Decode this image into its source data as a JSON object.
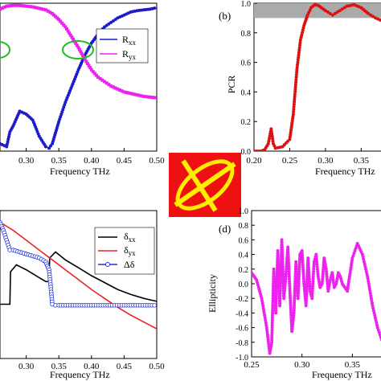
{
  "chart_data": [
    {
      "type": "line",
      "panel_label": "",
      "xlabel": "Frequency THz",
      "ylabel": "",
      "xlim": [
        0.25,
        0.5
      ],
      "ylim": [
        0,
        1
      ],
      "x_ticks": [
        "0.30",
        "0.35",
        "0.40",
        "0.45",
        "0.50"
      ],
      "legend": {
        "position": "middle-right"
      },
      "series": [
        {
          "name": "Rxx",
          "name_main": "R",
          "name_sub": "xx",
          "color": "#1c1ccc",
          "marker": "circle",
          "x": [
            0.25,
            0.26,
            0.27,
            0.275,
            0.28,
            0.29,
            0.3,
            0.31,
            0.32,
            0.33,
            0.335,
            0.34,
            0.35,
            0.36,
            0.37,
            0.38,
            0.39,
            0.4,
            0.41,
            0.42,
            0.43,
            0.44,
            0.45,
            0.46,
            0.47,
            0.48,
            0.49,
            0.5
          ],
          "y": [
            0.1,
            0.05,
            0.03,
            0.13,
            0.17,
            0.27,
            0.25,
            0.21,
            0.1,
            0.03,
            0.02,
            0.05,
            0.2,
            0.33,
            0.44,
            0.55,
            0.65,
            0.73,
            0.79,
            0.84,
            0.87,
            0.9,
            0.92,
            0.94,
            0.95,
            0.955,
            0.96,
            0.97
          ]
        },
        {
          "name": "Ryx",
          "name_main": "R",
          "name_sub": "yx",
          "color": "#ee22ee",
          "marker": "square",
          "x": [
            0.25,
            0.26,
            0.27,
            0.28,
            0.29,
            0.3,
            0.31,
            0.32,
            0.33,
            0.34,
            0.35,
            0.36,
            0.37,
            0.38,
            0.39,
            0.4,
            0.41,
            0.42,
            0.43,
            0.44,
            0.45,
            0.46,
            0.47,
            0.48,
            0.49,
            0.5
          ],
          "y": [
            0.93,
            0.96,
            0.98,
            0.985,
            0.985,
            0.98,
            0.975,
            0.965,
            0.955,
            0.93,
            0.89,
            0.84,
            0.77,
            0.7,
            0.62,
            0.55,
            0.5,
            0.47,
            0.44,
            0.42,
            0.4,
            0.39,
            0.38,
            0.37,
            0.365,
            0.36
          ]
        }
      ],
      "annotations": [
        "green ellipse near x=0.25",
        "green ellipse near x=0.39 at crossing"
      ]
    },
    {
      "type": "line",
      "panel_label": "(b)",
      "xlabel": "Frequency THz",
      "ylabel": "PCR",
      "xlim": [
        0.2,
        0.38
      ],
      "ylim": [
        0,
        1
      ],
      "x_ticks": [
        "0.20",
        "0.25",
        "0.30",
        "0.35"
      ],
      "y_ticks": [
        "0.0",
        "0.2",
        "0.4",
        "0.6",
        "0.8",
        "1.0"
      ],
      "shaded_band": [
        0.9,
        1.0
      ],
      "series": [
        {
          "name": "",
          "color": "#dd1111",
          "marker": "circle",
          "x": [
            0.2,
            0.21,
            0.215,
            0.22,
            0.224,
            0.227,
            0.23,
            0.24,
            0.25,
            0.255,
            0.26,
            0.265,
            0.27,
            0.275,
            0.28,
            0.285,
            0.29,
            0.3,
            0.31,
            0.32,
            0.33,
            0.34,
            0.35,
            0.36,
            0.37,
            0.38
          ],
          "y": [
            0.0,
            0.0,
            0.01,
            0.05,
            0.15,
            0.05,
            0.02,
            0.03,
            0.08,
            0.25,
            0.55,
            0.75,
            0.85,
            0.92,
            0.97,
            0.99,
            0.985,
            0.95,
            0.92,
            0.95,
            0.98,
            0.99,
            0.97,
            0.93,
            0.9,
            0.88
          ]
        }
      ]
    },
    {
      "type": "line",
      "panel_label": "",
      "xlabel": "Frequency THz",
      "ylabel": "",
      "xlim": [
        0.25,
        0.5
      ],
      "ylim": [
        -0.5,
        1.0
      ],
      "x_ticks": [
        "0.30",
        "0.35",
        "0.40",
        "0.45",
        "0.50"
      ],
      "legend": {
        "position": "top-right"
      },
      "series": [
        {
          "name": "δxx",
          "name_main": "δ",
          "name_sub": "xx",
          "color": "#000000",
          "marker": "none",
          "x": [
            0.25,
            0.27,
            0.275,
            0.276,
            0.285,
            0.3,
            0.32,
            0.33,
            0.335,
            0.336,
            0.345,
            0.36,
            0.38,
            0.4,
            0.42,
            0.44,
            0.46,
            0.48,
            0.5
          ],
          "y": [
            0.05,
            0.05,
            0.05,
            0.38,
            0.45,
            0.4,
            0.32,
            0.28,
            0.28,
            0.52,
            0.58,
            0.5,
            0.42,
            0.34,
            0.27,
            0.2,
            0.15,
            0.11,
            0.08
          ]
        },
        {
          "name": "δyx",
          "name_main": "δ",
          "name_sub": "yx",
          "color": "#ee2222",
          "marker": "none",
          "x": [
            0.25,
            0.28,
            0.3,
            0.32,
            0.34,
            0.36,
            0.38,
            0.4,
            0.42,
            0.44,
            0.46,
            0.48,
            0.5
          ],
          "y": [
            0.92,
            0.8,
            0.7,
            0.6,
            0.5,
            0.4,
            0.3,
            0.2,
            0.11,
            0.02,
            -0.06,
            -0.13,
            -0.2
          ]
        },
        {
          "name": "Δδ",
          "name_main": "Δδ",
          "name_sub": "",
          "color": "#2233dd",
          "marker": "circle",
          "x": [
            0.25,
            0.255,
            0.26,
            0.265,
            0.27,
            0.275,
            0.28,
            0.29,
            0.3,
            0.31,
            0.32,
            0.33,
            0.335,
            0.338,
            0.34,
            0.345,
            0.35,
            0.4,
            0.45,
            0.5
          ],
          "y": [
            0.95,
            0.92,
            0.88,
            0.8,
            0.7,
            0.6,
            0.6,
            0.58,
            0.56,
            0.54,
            0.52,
            0.48,
            0.4,
            0.2,
            0.05,
            0.04,
            0.04,
            0.04,
            0.04,
            0.04
          ]
        }
      ]
    },
    {
      "type": "line",
      "panel_label": "(d)",
      "xlabel": "Frequency THz",
      "ylabel": "Ellipticity",
      "xlim": [
        0.25,
        0.38
      ],
      "ylim": [
        -1.0,
        1.0
      ],
      "x_ticks": [
        "0.25",
        "0.30",
        "0.35"
      ],
      "y_ticks": [
        "-1.0",
        "-0.8",
        "-0.6",
        "-0.4",
        "-0.2",
        "0.0",
        "0.2",
        "0.4",
        "0.6",
        "0.8",
        "1.0"
      ],
      "series": [
        {
          "name": "",
          "color": "#ee22ee",
          "marker": "circle",
          "x": [
            0.25,
            0.255,
            0.26,
            0.265,
            0.268,
            0.27,
            0.272,
            0.274,
            0.276,
            0.278,
            0.28,
            0.282,
            0.284,
            0.286,
            0.288,
            0.29,
            0.292,
            0.294,
            0.296,
            0.298,
            0.3,
            0.302,
            0.304,
            0.306,
            0.308,
            0.31,
            0.312,
            0.314,
            0.316,
            0.318,
            0.32,
            0.322,
            0.324,
            0.326,
            0.328,
            0.33,
            0.332,
            0.334,
            0.336,
            0.338,
            0.34,
            0.345,
            0.35,
            0.355,
            0.36,
            0.365,
            0.37,
            0.375,
            0.38
          ],
          "y": [
            0.15,
            0.05,
            -0.2,
            -0.6,
            -0.95,
            -0.8,
            0.2,
            -0.4,
            0.45,
            -0.3,
            0.6,
            -0.2,
            0.1,
            0.5,
            -0.1,
            -0.65,
            -0.4,
            0.3,
            -0.2,
            0.4,
            0.45,
            0.0,
            -0.3,
            0.35,
            -0.1,
            -0.2,
            0.3,
            0.4,
            0.1,
            -0.05,
            0.0,
            0.35,
            0.2,
            -0.1,
            0.05,
            0.15,
            -0.05,
            0.0,
            0.15,
            0.1,
            0.0,
            -0.1,
            0.35,
            0.55,
            0.4,
            0.1,
            -0.3,
            -0.6,
            -0.8
          ]
        }
      ]
    }
  ]
}
